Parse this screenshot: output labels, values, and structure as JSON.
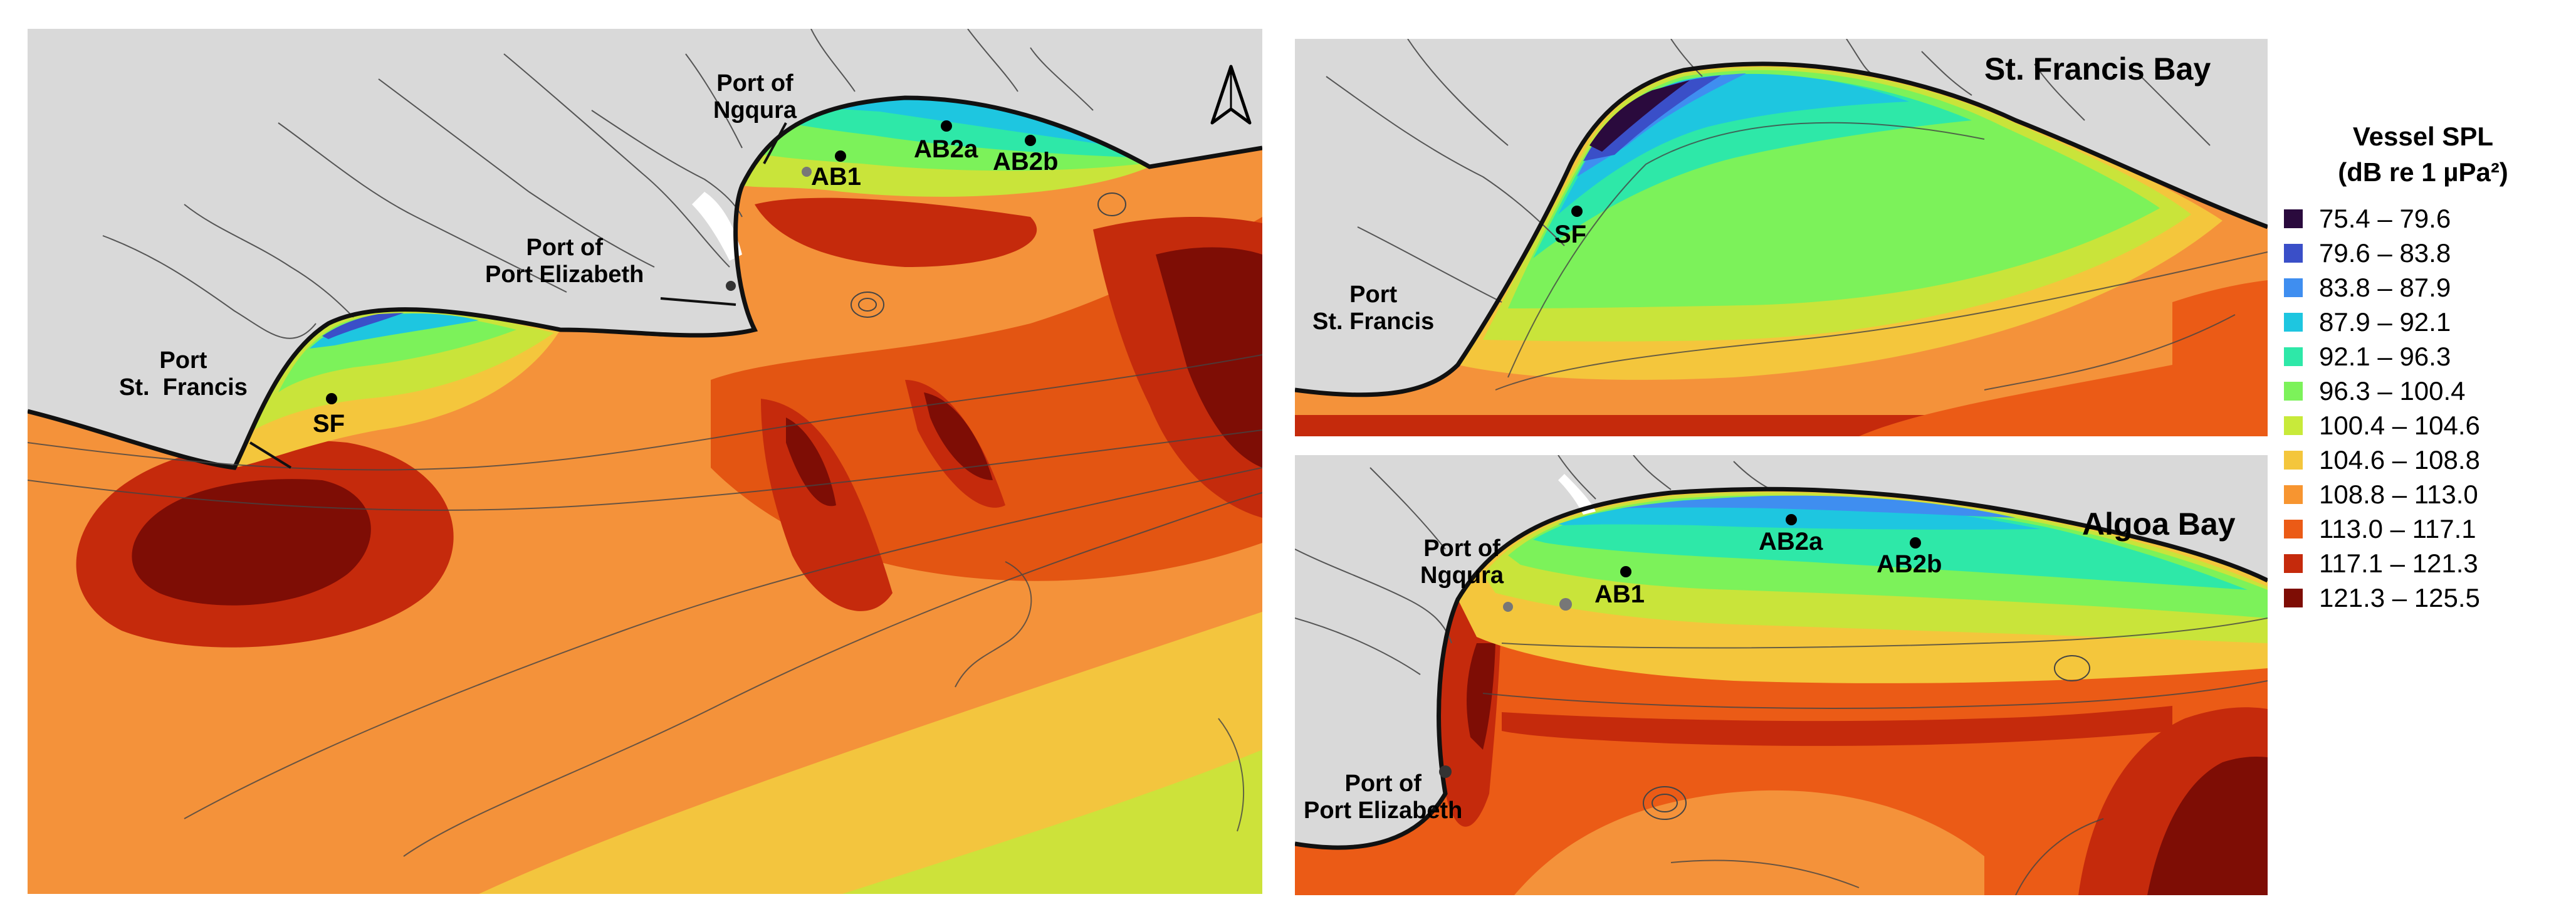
{
  "main_map": {
    "labels": {
      "port_of_ngqura": "Port of\nNgqura",
      "port_of_port_elizabeth": "Port of\nPort Elizabeth",
      "port_st_francis": "Port\nSt.  Francis",
      "sf": "SF",
      "ab1": "AB1",
      "ab2a": "AB2a",
      "ab2b": "AB2b"
    },
    "north_arrow_icon": "north-arrow-icon"
  },
  "st_francis_map": {
    "title": "St. Francis Bay",
    "labels": {
      "port_st_francis": "Port\nSt. Francis",
      "sf": "SF"
    }
  },
  "algoa_map": {
    "title": "Algoa Bay",
    "labels": {
      "port_of_ngqura": "Port of\nNgqura",
      "port_of_port_elizabeth": "Port of\nPort Elizabeth",
      "ab1": "AB1",
      "ab2a": "AB2a",
      "ab2b": "AB2b"
    }
  },
  "legend": {
    "title": "Vessel SPL\n(dB re 1 µPa²)",
    "entries": [
      {
        "label": "75.4 – 79.6",
        "color": "#2a0a3d"
      },
      {
        "label": "79.6 – 83.8",
        "color": "#3a4fc8"
      },
      {
        "label": "83.8 – 87.9",
        "color": "#3f8ef0"
      },
      {
        "label": "87.9 – 92.1",
        "color": "#1ec6e0"
      },
      {
        "label": "92.1 – 96.3",
        "color": "#2ee8a8"
      },
      {
        "label": "96.3 – 100.4",
        "color": "#7cf25a"
      },
      {
        "label": "100.4 – 104.6",
        "color": "#c8ea3a"
      },
      {
        "label": "104.6 – 108.8",
        "color": "#f4c63c"
      },
      {
        "label": "108.8 – 113.0",
        "color": "#f79530"
      },
      {
        "label": "113.0 – 117.1",
        "color": "#eb5b16"
      },
      {
        "label": "117.1 – 121.3",
        "color": "#c52a0c"
      },
      {
        "label": "121.3 – 125.5",
        "color": "#7e0d05"
      }
    ]
  }
}
